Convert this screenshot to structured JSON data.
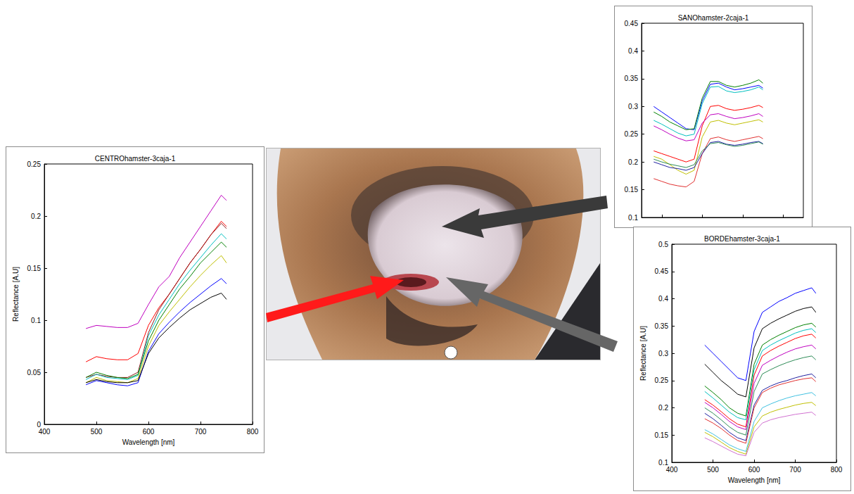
{
  "chart_data": [
    {
      "type": "line",
      "title": "CENTROhamster-3caja-1",
      "xlabel": "Wavelength [nm]",
      "ylabel": "Reflectance [A.U]",
      "x": [
        480,
        500,
        520,
        540,
        560,
        580,
        600,
        620,
        640,
        660,
        680,
        700,
        720,
        740,
        750
      ],
      "xlim": [
        400,
        800
      ],
      "xticks": [
        400,
        500,
        600,
        700,
        800
      ],
      "ylim": [
        0,
        0.25
      ],
      "yticks": [
        0,
        0.05,
        0.1,
        0.15,
        0.2,
        0.25
      ],
      "grid": false,
      "series": [
        {
          "color": "#bf00bf",
          "values": [
            0.092,
            0.095,
            0.094,
            0.093,
            0.093,
            0.097,
            0.115,
            0.132,
            0.142,
            0.16,
            0.175,
            0.19,
            0.205,
            0.22,
            0.215
          ]
        },
        {
          "color": "#ff0000",
          "values": [
            0.06,
            0.065,
            0.063,
            0.062,
            0.062,
            0.068,
            0.095,
            0.112,
            0.125,
            0.14,
            0.155,
            0.168,
            0.182,
            0.195,
            0.19
          ]
        },
        {
          "color": "#8b1a1a",
          "values": [
            0.045,
            0.048,
            0.046,
            0.045,
            0.045,
            0.05,
            0.088,
            0.11,
            0.125,
            0.14,
            0.155,
            0.168,
            0.182,
            0.193,
            0.188
          ]
        },
        {
          "color": "#00bfbf",
          "values": [
            0.043,
            0.048,
            0.045,
            0.044,
            0.043,
            0.047,
            0.085,
            0.105,
            0.12,
            0.135,
            0.148,
            0.16,
            0.172,
            0.183,
            0.178
          ]
        },
        {
          "color": "#008000",
          "values": [
            0.045,
            0.05,
            0.047,
            0.045,
            0.044,
            0.048,
            0.08,
            0.1,
            0.115,
            0.13,
            0.142,
            0.155,
            0.165,
            0.175,
            0.17
          ]
        },
        {
          "color": "#bfbf00",
          "values": [
            0.04,
            0.045,
            0.042,
            0.041,
            0.04,
            0.044,
            0.075,
            0.095,
            0.108,
            0.12,
            0.132,
            0.143,
            0.153,
            0.162,
            0.155
          ]
        },
        {
          "color": "#0000ff",
          "values": [
            0.038,
            0.042,
            0.04,
            0.038,
            0.037,
            0.04,
            0.07,
            0.087,
            0.098,
            0.108,
            0.117,
            0.125,
            0.133,
            0.14,
            0.135
          ]
        },
        {
          "color": "#000000",
          "values": [
            0.04,
            0.043,
            0.041,
            0.04,
            0.04,
            0.042,
            0.068,
            0.083,
            0.093,
            0.102,
            0.11,
            0.116,
            0.122,
            0.126,
            0.12
          ]
        }
      ]
    },
    {
      "type": "line",
      "title": "SANOhamster-2caja-1",
      "x": [
        480,
        500,
        520,
        540,
        560,
        580,
        600,
        620,
        640,
        660,
        680,
        700,
        720,
        740,
        750
      ],
      "xlim": [
        450,
        850
      ],
      "xticks": [
        500,
        600,
        700,
        800
      ],
      "tick_labels": "y",
      "ylim": [
        0.1,
        0.45
      ],
      "yticks": [
        0.1,
        0.15,
        0.2,
        0.25,
        0.3,
        0.35,
        0.4,
        0.45
      ],
      "grid": false,
      "series": [
        {
          "color": "#0000ff",
          "values": [
            0.3,
            0.29,
            0.28,
            0.27,
            0.26,
            0.258,
            0.31,
            0.34,
            0.342,
            0.335,
            0.33,
            0.332,
            0.335,
            0.338,
            0.333
          ]
        },
        {
          "color": "#008000",
          "values": [
            0.29,
            0.282,
            0.272,
            0.265,
            0.258,
            0.26,
            0.315,
            0.345,
            0.345,
            0.338,
            0.335,
            0.338,
            0.342,
            0.348,
            0.342
          ]
        },
        {
          "color": "#00bfbf",
          "values": [
            0.275,
            0.268,
            0.26,
            0.252,
            0.247,
            0.25,
            0.305,
            0.335,
            0.336,
            0.328,
            0.325,
            0.327,
            0.33,
            0.335,
            0.33
          ]
        },
        {
          "color": "#ff0000",
          "values": [
            0.22,
            0.215,
            0.21,
            0.205,
            0.2,
            0.205,
            0.265,
            0.3,
            0.302,
            0.296,
            0.293,
            0.295,
            0.298,
            0.302,
            0.298
          ]
        },
        {
          "color": "#bf00bf",
          "values": [
            0.265,
            0.258,
            0.25,
            0.243,
            0.238,
            0.24,
            0.27,
            0.285,
            0.287,
            0.282,
            0.278,
            0.28,
            0.283,
            0.287,
            0.282
          ]
        },
        {
          "color": "#bfbf00",
          "values": [
            0.21,
            0.205,
            0.195,
            0.185,
            0.178,
            0.185,
            0.245,
            0.272,
            0.275,
            0.27,
            0.267,
            0.27,
            0.273,
            0.276,
            0.272
          ]
        },
        {
          "color": "#e03030",
          "values": [
            0.17,
            0.165,
            0.16,
            0.157,
            0.155,
            0.165,
            0.215,
            0.242,
            0.245,
            0.24,
            0.237,
            0.24,
            0.243,
            0.246,
            0.242
          ]
        },
        {
          "color": "#2020a0",
          "values": [
            0.2,
            0.195,
            0.19,
            0.188,
            0.185,
            0.19,
            0.215,
            0.235,
            0.237,
            0.232,
            0.23,
            0.232,
            0.235,
            0.237,
            0.233
          ]
        },
        {
          "color": "#2e8b57",
          "values": [
            0.205,
            0.2,
            0.196,
            0.193,
            0.19,
            0.195,
            0.22,
            0.233,
            0.235,
            0.231,
            0.228,
            0.23,
            0.233,
            0.236,
            0.232
          ]
        }
      ]
    },
    {
      "type": "line",
      "title": "BORDEhamster-3caja-1",
      "xlabel": "Wavelength [nm]",
      "ylabel": "Reflectance [A.U]",
      "x": [
        480,
        500,
        520,
        540,
        560,
        580,
        600,
        620,
        640,
        660,
        680,
        700,
        720,
        740,
        750
      ],
      "xlim": [
        400,
        800
      ],
      "xticks": [
        400,
        500,
        600,
        700,
        800
      ],
      "ylim": [
        0.1,
        0.5
      ],
      "yticks": [
        0.1,
        0.15,
        0.2,
        0.25,
        0.3,
        0.35,
        0.4,
        0.45,
        0.5
      ],
      "grid": false,
      "series": [
        {
          "color": "#0000ff",
          "values": [
            0.315,
            0.3,
            0.285,
            0.27,
            0.255,
            0.25,
            0.34,
            0.375,
            0.385,
            0.395,
            0.402,
            0.41,
            0.415,
            0.42,
            0.41
          ]
        },
        {
          "color": "#000000",
          "values": [
            0.28,
            0.265,
            0.25,
            0.238,
            0.225,
            0.22,
            0.31,
            0.345,
            0.355,
            0.363,
            0.37,
            0.377,
            0.382,
            0.385,
            0.375
          ]
        },
        {
          "color": "#008000",
          "values": [
            0.24,
            0.228,
            0.215,
            0.2,
            0.19,
            0.185,
            0.28,
            0.315,
            0.325,
            0.333,
            0.34,
            0.347,
            0.352,
            0.355,
            0.348
          ]
        },
        {
          "color": "#00bfbf",
          "values": [
            0.23,
            0.218,
            0.205,
            0.192,
            0.182,
            0.178,
            0.27,
            0.305,
            0.315,
            0.323,
            0.33,
            0.337,
            0.342,
            0.345,
            0.338
          ]
        },
        {
          "color": "#ff0000",
          "values": [
            0.215,
            0.205,
            0.193,
            0.18,
            0.17,
            0.165,
            0.26,
            0.295,
            0.305,
            0.313,
            0.32,
            0.327,
            0.332,
            0.335,
            0.328
          ]
        },
        {
          "color": "#bf00bf",
          "values": [
            0.21,
            0.2,
            0.188,
            0.175,
            0.165,
            0.16,
            0.245,
            0.278,
            0.287,
            0.295,
            0.302,
            0.308,
            0.312,
            0.315,
            0.308
          ]
        },
        {
          "color": "#2e8b57",
          "values": [
            0.2,
            0.19,
            0.178,
            0.165,
            0.155,
            0.15,
            0.23,
            0.262,
            0.27,
            0.277,
            0.283,
            0.288,
            0.292,
            0.295,
            0.288
          ]
        },
        {
          "color": "#2020a0",
          "values": [
            0.19,
            0.18,
            0.168,
            0.155,
            0.145,
            0.14,
            0.205,
            0.232,
            0.24,
            0.246,
            0.25,
            0.255,
            0.259,
            0.262,
            0.255
          ]
        },
        {
          "color": "#e03030",
          "values": [
            0.18,
            0.172,
            0.162,
            0.15,
            0.14,
            0.135,
            0.2,
            0.228,
            0.236,
            0.242,
            0.246,
            0.25,
            0.253,
            0.255,
            0.248
          ]
        },
        {
          "color": "#40c0e0",
          "values": [
            0.16,
            0.152,
            0.142,
            0.132,
            0.125,
            0.12,
            0.175,
            0.2,
            0.207,
            0.213,
            0.218,
            0.222,
            0.225,
            0.228,
            0.222
          ]
        },
        {
          "color": "#bfbf00",
          "values": [
            0.155,
            0.147,
            0.137,
            0.127,
            0.12,
            0.115,
            0.165,
            0.185,
            0.192,
            0.197,
            0.201,
            0.205,
            0.208,
            0.21,
            0.204
          ]
        },
        {
          "color": "#d070d0",
          "values": [
            0.145,
            0.138,
            0.13,
            0.122,
            0.115,
            0.112,
            0.155,
            0.172,
            0.178,
            0.182,
            0.185,
            0.188,
            0.19,
            0.192,
            0.186
          ]
        }
      ]
    }
  ]
}
